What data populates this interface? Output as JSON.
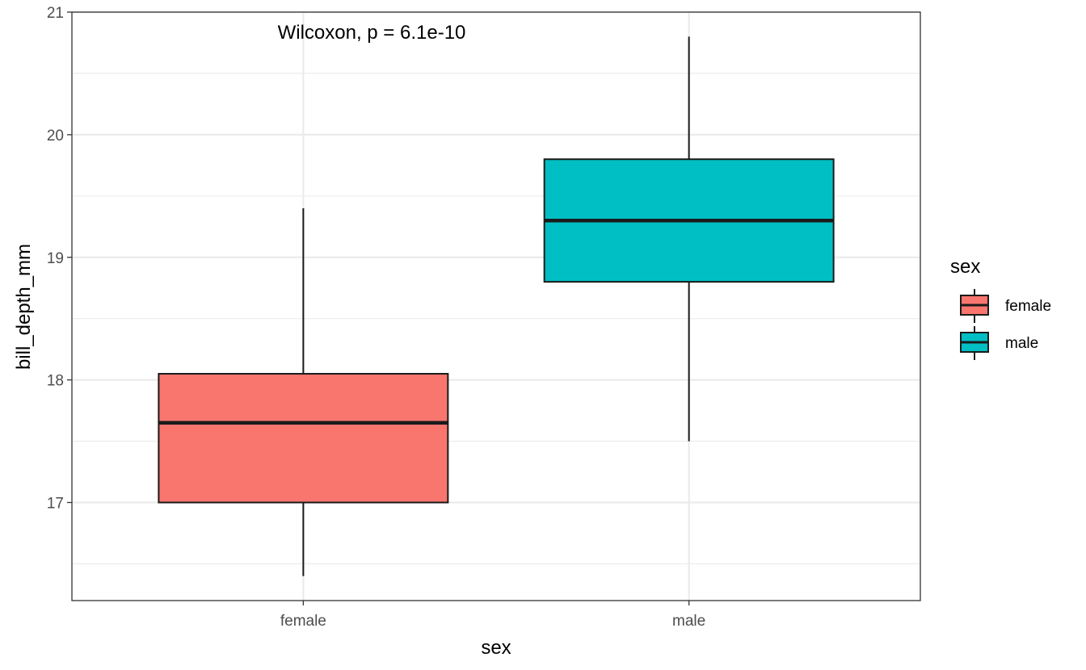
{
  "chart_data": {
    "type": "boxplot",
    "xlabel": "sex",
    "ylabel": "bill_depth_mm",
    "categories": [
      "female",
      "male"
    ],
    "ylim": [
      16.2,
      21.0
    ],
    "yticks": [
      17,
      18,
      19,
      20,
      21
    ],
    "grid": true,
    "legend_position": "right",
    "annotation": "Wilcoxon, p = 6.1e-10",
    "series": [
      {
        "category": "female",
        "min": 16.4,
        "q1": 17.0,
        "median": 17.65,
        "q3": 18.05,
        "max": 19.4,
        "color": "#F8766D"
      },
      {
        "category": "male",
        "min": 17.5,
        "q1": 18.8,
        "median": 19.3,
        "q3": 19.8,
        "max": 20.8,
        "color": "#00BFC4"
      }
    ],
    "legend": {
      "title": "sex",
      "items": [
        {
          "label": "female",
          "color": "#F8766D"
        },
        {
          "label": "male",
          "color": "#00BFC4"
        }
      ]
    }
  }
}
